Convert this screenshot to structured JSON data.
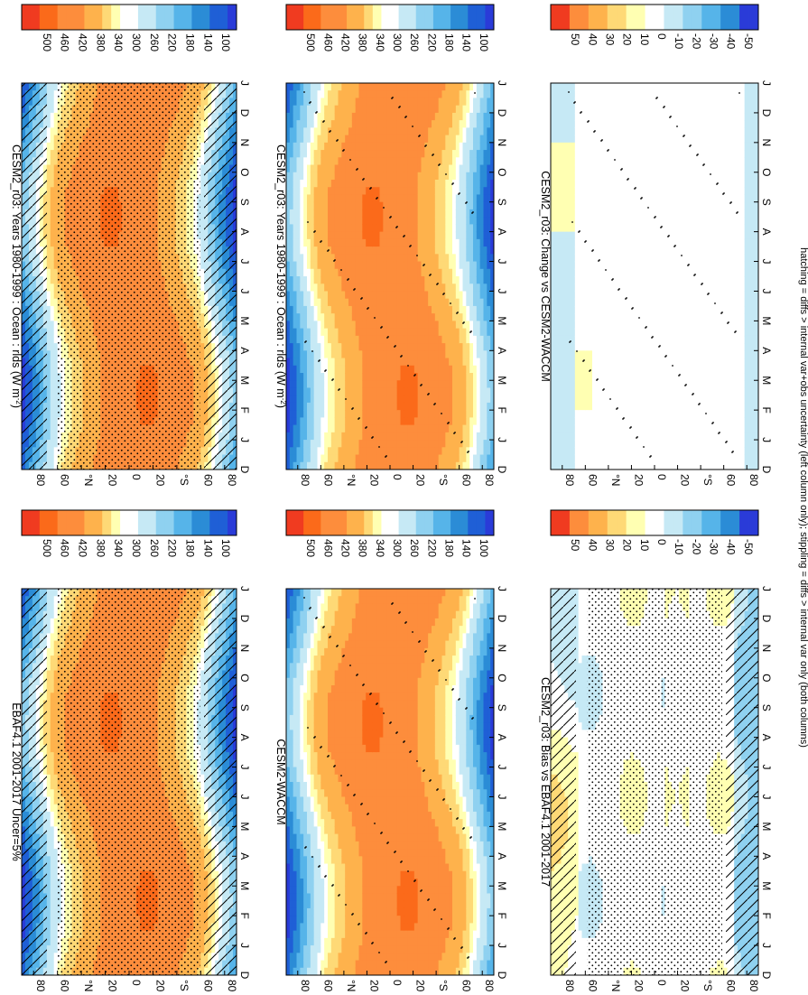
{
  "footer_note": "hatching = diffs > internal var+obs uncertainty (left column only); stippling = diffs > internal var only (both columns)",
  "chart_data": [
    {
      "type": "heatmap",
      "panel": "left-top",
      "title": "CESM2_r03: Years 1980-1999 : Ocean : rlds (W m",
      "title_sup": "-2",
      "title_end": ")",
      "xlabel": "",
      "x_ticks": [
        "D",
        "J",
        "F",
        "M",
        "A",
        "M",
        "J",
        "J",
        "A",
        "S",
        "O",
        "N",
        "D",
        "J"
      ],
      "y_ticks": [
        "80",
        "60",
        "°N",
        "20",
        "0",
        "20",
        "°S",
        "60",
        "80"
      ],
      "ylim": [
        -90,
        90
      ],
      "colorbar": {
        "labels": [
          "500",
          "460",
          "420",
          "380",
          "340",
          "300",
          "260",
          "220",
          "180",
          "140",
          "100"
        ],
        "range": [
          80,
          520
        ]
      },
      "field": "climatology",
      "hatching": true,
      "stippling": "heavy"
    },
    {
      "type": "heatmap",
      "panel": "right-top",
      "title": "CESM2_r03: Years 1980-1999 : Ocean : rlds (W m",
      "title_sup": "-2",
      "title_end": ")",
      "x_ticks": [
        "D",
        "J",
        "F",
        "M",
        "A",
        "M",
        "J",
        "J",
        "A",
        "S",
        "O",
        "N",
        "D",
        "J"
      ],
      "y_ticks": [
        "80",
        "60",
        "°N",
        "20",
        "0",
        "20",
        "°S",
        "60",
        "80"
      ],
      "ylim": [
        -90,
        90
      ],
      "colorbar": {
        "labels": [
          "500",
          "460",
          "420",
          "380",
          "340",
          "300",
          "260",
          "220",
          "180",
          "140",
          "100"
        ],
        "range": [
          80,
          520
        ]
      },
      "field": "climatology",
      "hatching": false,
      "stippling": "sparse"
    },
    {
      "type": "heatmap",
      "panel": "left-middle",
      "title": "EBAF4.1 2001-2017 Uncer=5%",
      "x_ticks": [
        "D",
        "J",
        "F",
        "M",
        "A",
        "M",
        "J",
        "J",
        "A",
        "S",
        "O",
        "N",
        "D",
        "J"
      ],
      "y_ticks": [
        "80",
        "60",
        "°N",
        "20",
        "0",
        "20",
        "°S",
        "60",
        "80"
      ],
      "ylim": [
        -90,
        90
      ],
      "colorbar": {
        "labels": [
          "500",
          "460",
          "420",
          "380",
          "340",
          "300",
          "260",
          "220",
          "180",
          "140",
          "100"
        ],
        "range": [
          80,
          520
        ]
      },
      "field": "climatology",
      "hatching": true,
      "stippling": "heavy"
    },
    {
      "type": "heatmap",
      "panel": "right-middle",
      "title": "CESM2-WACCM",
      "x_ticks": [
        "D",
        "J",
        "F",
        "M",
        "A",
        "M",
        "J",
        "J",
        "A",
        "S",
        "O",
        "N",
        "D",
        "J"
      ],
      "y_ticks": [
        "80",
        "60",
        "°N",
        "20",
        "0",
        "20",
        "°S",
        "60",
        "80"
      ],
      "ylim": [
        -90,
        90
      ],
      "colorbar": {
        "labels": [
          "500",
          "460",
          "420",
          "380",
          "340",
          "300",
          "260",
          "220",
          "180",
          "140",
          "100"
        ],
        "range": [
          80,
          520
        ]
      },
      "field": "climatology",
      "hatching": false,
      "stippling": "sparse"
    },
    {
      "type": "heatmap",
      "panel": "left-bottom",
      "title": "CESM2_r03: Bias vs EBAF4.1 2001-2017",
      "x_ticks": [
        "D",
        "J",
        "F",
        "M",
        "A",
        "M",
        "J",
        "J",
        "A",
        "S",
        "O",
        "N",
        "D",
        "J"
      ],
      "y_ticks": [
        "80",
        "60",
        "°N",
        "20",
        "0",
        "20",
        "°S",
        "60",
        "80"
      ],
      "ylim": [
        -90,
        90
      ],
      "colorbar": {
        "labels": [
          "50",
          "40",
          "30",
          "20",
          "10",
          "0",
          "-10",
          "-20",
          "-30",
          "-40",
          "-50"
        ],
        "range": [
          -55,
          55
        ]
      },
      "field": "bias",
      "hatching": true,
      "stippling": "heavy"
    },
    {
      "type": "heatmap",
      "panel": "right-bottom",
      "title": "CESM2_r03: Change vs CESM2-WACCM",
      "x_ticks": [
        "D",
        "J",
        "F",
        "M",
        "A",
        "M",
        "J",
        "J",
        "A",
        "S",
        "O",
        "N",
        "D",
        "J"
      ],
      "y_ticks": [
        "80",
        "60",
        "°N",
        "20",
        "0",
        "20",
        "°S",
        "60",
        "80"
      ],
      "ylim": [
        -90,
        90
      ],
      "colorbar": {
        "labels": [
          "50",
          "40",
          "30",
          "20",
          "10",
          "0",
          "-10",
          "-20",
          "-30",
          "-40",
          "-50"
        ],
        "range": [
          -55,
          55
        ]
      },
      "field": "change",
      "hatching": false,
      "stippling": "sparse"
    }
  ]
}
